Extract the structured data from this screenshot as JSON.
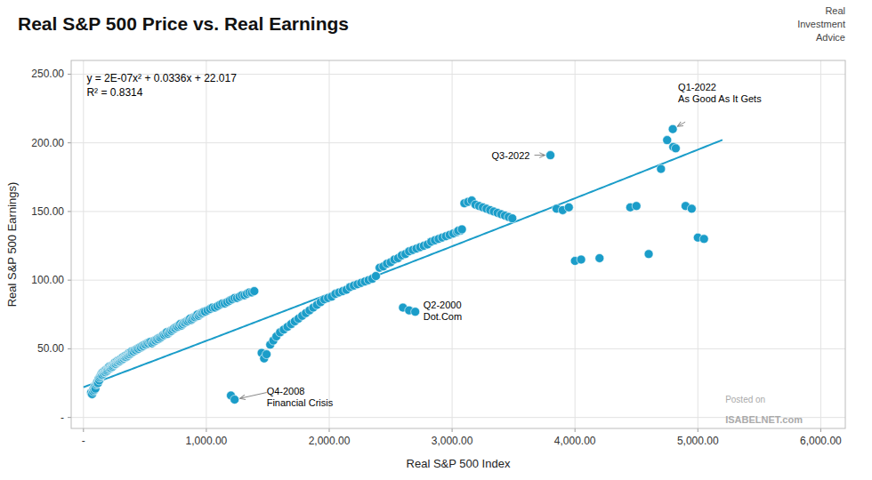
{
  "chart_data": {
    "type": "scatter",
    "title": "Real S&P 500 Price vs. Real Earnings",
    "x_label": "Real S&P 500 Index",
    "y_label": "Real S&P 500 Earnings)",
    "xlim": [
      -100,
      6200
    ],
    "ylim": [
      -8,
      260
    ],
    "xticks": [
      {
        "value": 0,
        "label": "-"
      },
      {
        "value": 1000,
        "label": "1,000.00"
      },
      {
        "value": 2000,
        "label": "2,000.00"
      },
      {
        "value": 3000,
        "label": "3,000.00"
      },
      {
        "value": 4000,
        "label": "4,000.00"
      },
      {
        "value": 5000,
        "label": "5,000.00"
      },
      {
        "value": 6000,
        "label": "6,000.00"
      }
    ],
    "yticks": [
      {
        "value": 0,
        "label": "-"
      },
      {
        "value": 50,
        "label": "50.00"
      },
      {
        "value": 100,
        "label": "100.00"
      },
      {
        "value": 150,
        "label": "150.00"
      },
      {
        "value": 200,
        "label": "200.00"
      },
      {
        "value": 250,
        "label": "250.00"
      }
    ],
    "grid": true,
    "color": "#1b9dc9",
    "x": [
      62,
      70,
      78,
      82,
      88,
      93,
      97,
      103,
      108,
      113,
      118,
      123,
      128,
      132,
      138,
      143,
      148,
      153,
      158,
      163,
      168,
      173,
      178,
      183,
      188,
      193,
      198,
      203,
      208,
      213,
      218,
      223,
      228,
      233,
      238,
      243,
      248,
      253,
      258,
      263,
      268,
      273,
      278,
      283,
      288,
      293,
      298,
      303,
      308,
      313,
      318,
      323,
      328,
      333,
      338,
      343,
      348,
      353,
      358,
      363,
      368,
      373,
      378,
      383,
      388,
      393,
      398,
      408,
      418,
      428,
      438,
      448,
      458,
      468,
      478,
      488,
      498,
      508,
      518,
      528,
      538,
      548,
      558,
      568,
      578,
      588,
      598,
      608,
      618,
      628,
      638,
      648,
      658,
      668,
      678,
      688,
      698,
      708,
      718,
      728,
      738,
      748,
      758,
      768,
      778,
      788,
      798,
      808,
      818,
      828,
      838,
      848,
      858,
      868,
      878,
      888,
      898,
      908,
      918,
      928,
      938,
      948,
      958,
      968,
      978,
      990,
      1010,
      1030,
      1050,
      1070,
      1090,
      1110,
      1130,
      1150,
      1170,
      1190,
      1210,
      1230,
      1250,
      1270,
      1290,
      1310,
      1330,
      1350,
      1370,
      1390,
      1200,
      1230,
      1450,
      1470,
      1490,
      1520,
      1545,
      1570,
      1600,
      1630,
      1660,
      1690,
      1720,
      1750,
      1780,
      1810,
      1840,
      1870,
      1900,
      1930,
      1960,
      1990,
      2020,
      2050,
      2080,
      2110,
      2140,
      2170,
      2200,
      2230,
      2260,
      2290,
      2320,
      2350,
      2380,
      2410,
      2440,
      2470,
      2500,
      2530,
      2560,
      2590,
      2620,
      2650,
      2680,
      2710,
      2740,
      2770,
      2800,
      2830,
      2860,
      2890,
      2920,
      2950,
      2980,
      2600,
      2650,
      2700,
      3010,
      3040,
      3070,
      3100,
      3130,
      3160,
      3190,
      3220,
      3250,
      3280,
      3310,
      3340,
      3370,
      3400,
      3430,
      3460,
      3490,
      3050,
      3080,
      3800,
      3850,
      3900,
      3950,
      4000,
      4050,
      4200,
      4450,
      4500,
      4600,
      4700,
      4750,
      4796,
      4800,
      4820,
      4900,
      4950,
      5000,
      5050
    ],
    "values": [
      18,
      17,
      19,
      21,
      20,
      23,
      21,
      24,
      25,
      26,
      25,
      28,
      27,
      29,
      30,
      31,
      32,
      31,
      33,
      32,
      33,
      34,
      33,
      34,
      35,
      34,
      35,
      36,
      37,
      36,
      37,
      36,
      37,
      38,
      37,
      38,
      39,
      39,
      40,
      39,
      40,
      41,
      40,
      41,
      41,
      42,
      41,
      42,
      43,
      42,
      43,
      44,
      43,
      44,
      44,
      45,
      44,
      45,
      46,
      45,
      46,
      47,
      46,
      47,
      48,
      47,
      48,
      48,
      49,
      49,
      50,
      50,
      51,
      51,
      52,
      52,
      53,
      53,
      54,
      54,
      55,
      55,
      54,
      55,
      56,
      56,
      57,
      57,
      58,
      58,
      59,
      60,
      60,
      61,
      62,
      61,
      62,
      63,
      63,
      64,
      65,
      65,
      66,
      66,
      67,
      68,
      67,
      68,
      69,
      69,
      70,
      70,
      71,
      72,
      71,
      72,
      73,
      73,
      74,
      75,
      74,
      75,
      76,
      76,
      77,
      77,
      78,
      79,
      80,
      80,
      81,
      82,
      83,
      83,
      84,
      85,
      86,
      87,
      87,
      88,
      89,
      89,
      90,
      91,
      91,
      92,
      16,
      13,
      47,
      43,
      46,
      53,
      56,
      59,
      62,
      64,
      66,
      68,
      70,
      72,
      74,
      76,
      78,
      80,
      82,
      84,
      86,
      87,
      88,
      90,
      91,
      92,
      93,
      95,
      96,
      97,
      98,
      99,
      100,
      101,
      103,
      109,
      110,
      112,
      113,
      115,
      116,
      118,
      119,
      121,
      122,
      123,
      124,
      125,
      126,
      128,
      129,
      130,
      131,
      132,
      133,
      80,
      78,
      77,
      134,
      135,
      136,
      156,
      157,
      158,
      155,
      154,
      153,
      152,
      151,
      150,
      149,
      148,
      147,
      146,
      145,
      136,
      137,
      191,
      152,
      151,
      153,
      114,
      115,
      116,
      153,
      154,
      119,
      181,
      202,
      210,
      197,
      196,
      154,
      152,
      131,
      130
    ],
    "trendline": {
      "color": "#1b9dc9",
      "coefficients": [
        2e-07,
        0.0336,
        22.017
      ],
      "x_range": [
        0,
        5200
      ]
    },
    "equation": [
      "y = 2E-07x² + 0.0336x + 22.017",
      "R² = 0.8314"
    ],
    "annotations": [
      {
        "label": "Q1-2022\nAs Good As It Gets",
        "xy": [
          4796,
          210
        ]
      },
      {
        "label": "Q3-2022",
        "xy": [
          3800,
          191
        ]
      },
      {
        "label": "Q2-2000\nDot.Com",
        "xy": [
          2650,
          78
        ]
      },
      {
        "label": "Q4-2008\nFinancial Crisis",
        "xy": [
          1230,
          13
        ]
      }
    ],
    "watermark": [
      "Posted on",
      "ISABELNET.com"
    ],
    "logo_text": "Real\nInvestment\nAdvice"
  }
}
